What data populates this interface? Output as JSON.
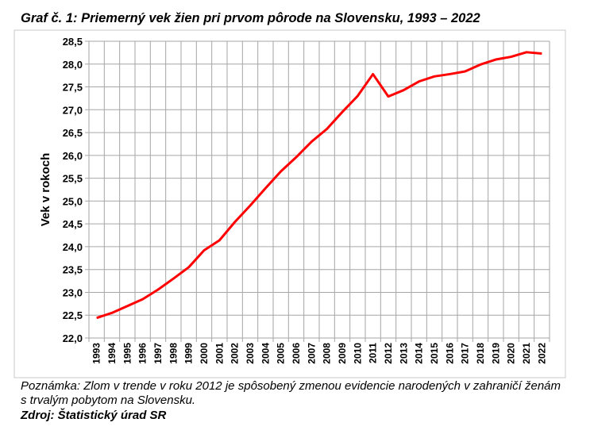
{
  "title": "Graf č. 1: Priemerný vek žien pri prvom pôrode na Slovensku, 1993 – 2022",
  "note": "Poznámka: Zlom v trende v roku 2012 je spôsobený zmenou evidencie narodených v zahraničí ženám s trvalým pobytom na Slovensku.",
  "source": "Zdroj: Štatistický úrad SR",
  "chart_data": {
    "type": "line",
    "title": "",
    "xlabel": "",
    "ylabel": "Vek v rokoch",
    "ylim": [
      22.0,
      28.5
    ],
    "yticks": [
      "22,0",
      "22,5",
      "23,0",
      "23,5",
      "24,0",
      "24,5",
      "25,0",
      "25,5",
      "26,0",
      "26,5",
      "27,0",
      "27,5",
      "28,0",
      "28,5"
    ],
    "grid": true,
    "line_color": "#ff0000",
    "categories": [
      "1993",
      "1994",
      "1995",
      "1996",
      "1997",
      "1998",
      "1999",
      "2000",
      "2001",
      "2002",
      "2003",
      "2004",
      "2005",
      "2006",
      "2007",
      "2008",
      "2009",
      "2010",
      "2011",
      "2012",
      "2013",
      "2014",
      "2015",
      "2016",
      "2017",
      "2018",
      "2019",
      "2020",
      "2021",
      "2022"
    ],
    "values": [
      22.44,
      22.55,
      22.7,
      22.85,
      23.06,
      23.3,
      23.55,
      23.92,
      24.14,
      24.54,
      24.9,
      25.28,
      25.65,
      25.96,
      26.3,
      26.58,
      26.95,
      27.3,
      27.78,
      27.29,
      27.43,
      27.62,
      27.73,
      27.78,
      27.84,
      27.99,
      28.1,
      28.16,
      28.26,
      28.23
    ]
  }
}
